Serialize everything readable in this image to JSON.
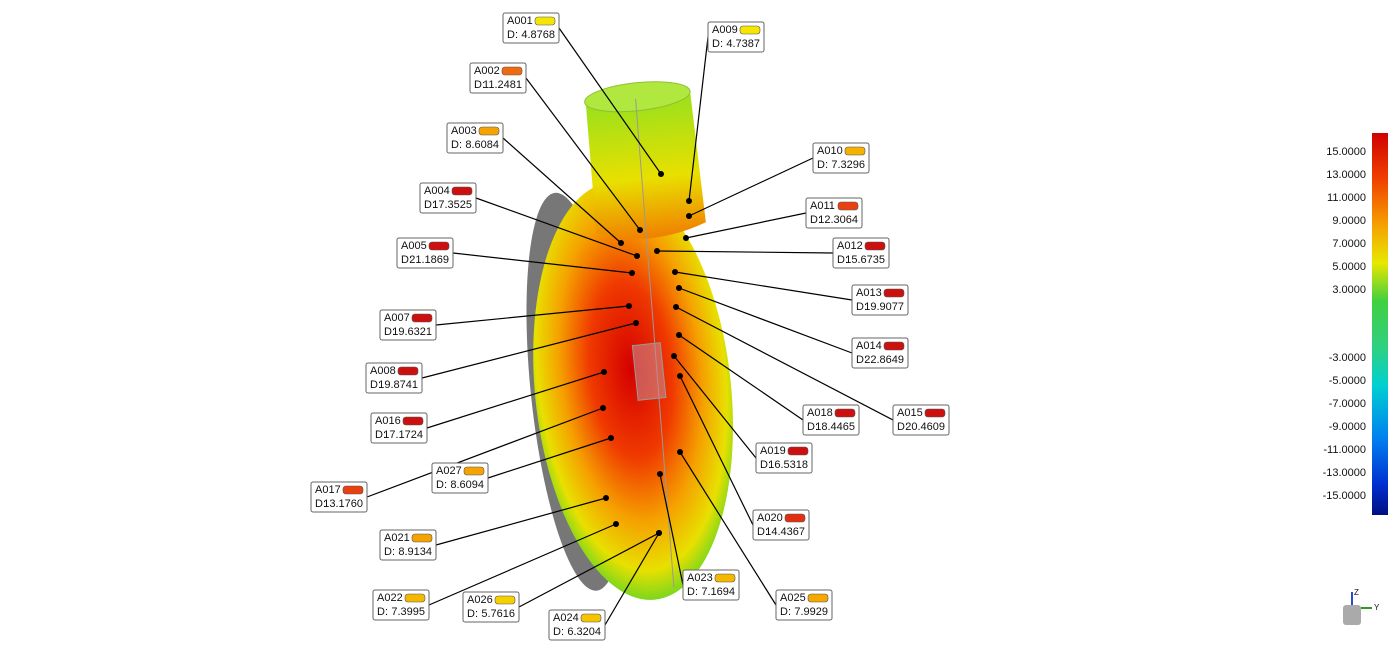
{
  "annotations": [
    {
      "id": "A001",
      "label": "D:",
      "value": "4.8768",
      "color": "#f5e600"
    },
    {
      "id": "A002",
      "label": "D:",
      "value": "11.2481",
      "color": "#f06a10"
    },
    {
      "id": "A003",
      "label": "D:",
      "value": "8.6084",
      "color": "#f5a300"
    },
    {
      "id": "A004",
      "label": "D:",
      "value": "17.3525",
      "color": "#cc1010"
    },
    {
      "id": "A005",
      "label": "D:",
      "value": "21.1869",
      "color": "#cc1010"
    },
    {
      "id": "A007",
      "label": "D:",
      "value": "19.6321",
      "color": "#cc1010"
    },
    {
      "id": "A008",
      "label": "D:",
      "value": "19.8741",
      "color": "#cc1010"
    },
    {
      "id": "A016",
      "label": "D:",
      "value": "17.1724",
      "color": "#cc1010"
    },
    {
      "id": "A017",
      "label": "D:",
      "value": "13.1760",
      "color": "#e84010"
    },
    {
      "id": "A027",
      "label": "D:",
      "value": "8.6094",
      "color": "#f5a300"
    },
    {
      "id": "A021",
      "label": "D:",
      "value": "8.9134",
      "color": "#f5a300"
    },
    {
      "id": "A022",
      "label": "D:",
      "value": "7.3995",
      "color": "#f5b800"
    },
    {
      "id": "A026",
      "label": "D:",
      "value": "5.7616",
      "color": "#f5d000"
    },
    {
      "id": "A024",
      "label": "D:",
      "value": "6.3204",
      "color": "#f5c400"
    },
    {
      "id": "A023",
      "label": "D:",
      "value": "7.1694",
      "color": "#f5b800"
    },
    {
      "id": "A025",
      "label": "D:",
      "value": "7.9929",
      "color": "#f5a800"
    },
    {
      "id": "A020",
      "label": "D:",
      "value": "14.4367",
      "color": "#e03010"
    },
    {
      "id": "A019",
      "label": "D:",
      "value": "16.5318",
      "color": "#cc1010"
    },
    {
      "id": "A018",
      "label": "D:",
      "value": "18.4465",
      "color": "#cc1010"
    },
    {
      "id": "A015",
      "label": "D:",
      "value": "20.4609",
      "color": "#cc1010"
    },
    {
      "id": "A014",
      "label": "D:",
      "value": "22.8649",
      "color": "#cc1010"
    },
    {
      "id": "A013",
      "label": "D:",
      "value": "19.9077",
      "color": "#cc1010"
    },
    {
      "id": "A012",
      "label": "D:",
      "value": "15.6735",
      "color": "#cc1010"
    },
    {
      "id": "A011",
      "label": "D:",
      "value": "12.3064",
      "color": "#e84010"
    },
    {
      "id": "A010",
      "label": "D:",
      "value": "7.3296",
      "color": "#f5b000"
    },
    {
      "id": "A009",
      "label": "D:",
      "value": "4.7387",
      "color": "#f5e600"
    }
  ],
  "color_scale": {
    "ticks": [
      "15.0000",
      "13.0000",
      "11.0000",
      "9.0000",
      "7.0000",
      "5.0000",
      "3.0000",
      "-3.0000",
      "-5.0000",
      "-7.0000",
      "-9.0000",
      "-11.0000",
      "-13.0000",
      "-15.0000"
    ]
  },
  "axes_icon": {
    "z": "Z",
    "y": "Y"
  }
}
